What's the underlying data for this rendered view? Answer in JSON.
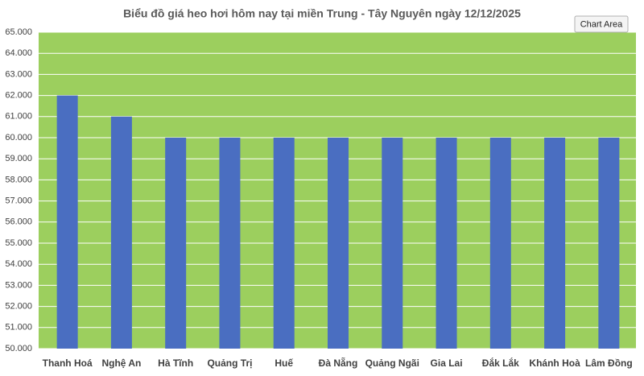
{
  "chart_data": {
    "type": "bar",
    "title": "Biểu đồ giá heo hơi hôm nay tại miền Trung - Tây Nguyên ngày 12/12/2025",
    "tooltip": "Chart Area",
    "categories": [
      "Thanh Hoá",
      "Nghệ An",
      "Hà Tĩnh",
      "Quảng Trị",
      "Huế",
      "Đà Nẵng",
      "Quảng Ngãi",
      "Gia Lai",
      "Đắk Lắk",
      "Khánh Hoà",
      "Lâm Đồng"
    ],
    "values": [
      62000,
      61000,
      60000,
      60000,
      60000,
      60000,
      60000,
      60000,
      60000,
      60000,
      60000
    ],
    "color": "#4a6ec1",
    "plot_background": "#9ccf5e",
    "grid": true,
    "ylim": [
      50000,
      65000
    ],
    "yticks": [
      {
        "value": 50000,
        "label": "50.000"
      },
      {
        "value": 51000,
        "label": "51.000"
      },
      {
        "value": 52000,
        "label": "52.000"
      },
      {
        "value": 53000,
        "label": "53.000"
      },
      {
        "value": 54000,
        "label": "54.000"
      },
      {
        "value": 55000,
        "label": "55.000"
      },
      {
        "value": 56000,
        "label": "56.000"
      },
      {
        "value": 57000,
        "label": "57.000"
      },
      {
        "value": 58000,
        "label": "58.000"
      },
      {
        "value": 59000,
        "label": "59.000"
      },
      {
        "value": 60000,
        "label": "60.000"
      },
      {
        "value": 61000,
        "label": "61.000"
      },
      {
        "value": 62000,
        "label": "62.000"
      },
      {
        "value": 63000,
        "label": "63.000"
      },
      {
        "value": 64000,
        "label": "64.000"
      },
      {
        "value": 65000,
        "label": "65.000"
      }
    ]
  }
}
